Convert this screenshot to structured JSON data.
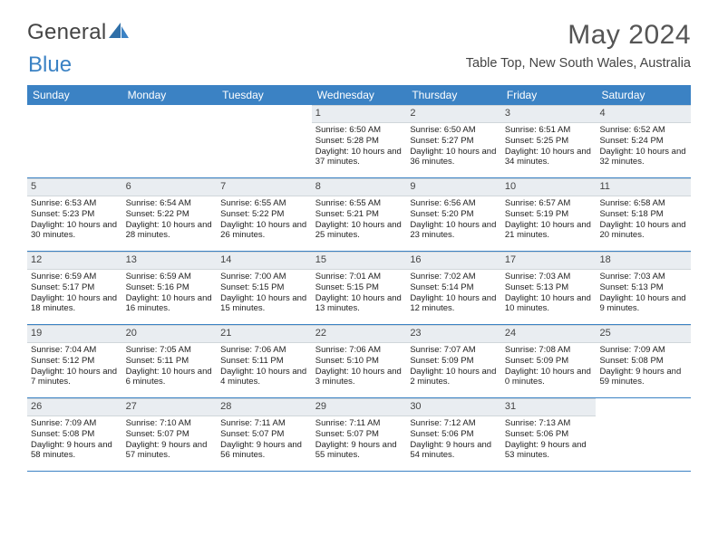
{
  "logo": {
    "text1": "General",
    "text2": "Blue"
  },
  "title": "May 2024",
  "location": "Table Top, New South Wales, Australia",
  "dow": [
    "Sunday",
    "Monday",
    "Tuesday",
    "Wednesday",
    "Thursday",
    "Friday",
    "Saturday"
  ],
  "colors": {
    "header_bg": "#3b82c4",
    "daynum_bg": "#e9edf1",
    "text": "#222222",
    "title": "#555555"
  },
  "weeks": [
    [
      {
        "n": "",
        "sr": "",
        "ss": "",
        "dl": ""
      },
      {
        "n": "",
        "sr": "",
        "ss": "",
        "dl": ""
      },
      {
        "n": "",
        "sr": "",
        "ss": "",
        "dl": ""
      },
      {
        "n": "1",
        "sr": "6:50 AM",
        "ss": "5:28 PM",
        "dl": "10 hours and 37 minutes."
      },
      {
        "n": "2",
        "sr": "6:50 AM",
        "ss": "5:27 PM",
        "dl": "10 hours and 36 minutes."
      },
      {
        "n": "3",
        "sr": "6:51 AM",
        "ss": "5:25 PM",
        "dl": "10 hours and 34 minutes."
      },
      {
        "n": "4",
        "sr": "6:52 AM",
        "ss": "5:24 PM",
        "dl": "10 hours and 32 minutes."
      }
    ],
    [
      {
        "n": "5",
        "sr": "6:53 AM",
        "ss": "5:23 PM",
        "dl": "10 hours and 30 minutes."
      },
      {
        "n": "6",
        "sr": "6:54 AM",
        "ss": "5:22 PM",
        "dl": "10 hours and 28 minutes."
      },
      {
        "n": "7",
        "sr": "6:55 AM",
        "ss": "5:22 PM",
        "dl": "10 hours and 26 minutes."
      },
      {
        "n": "8",
        "sr": "6:55 AM",
        "ss": "5:21 PM",
        "dl": "10 hours and 25 minutes."
      },
      {
        "n": "9",
        "sr": "6:56 AM",
        "ss": "5:20 PM",
        "dl": "10 hours and 23 minutes."
      },
      {
        "n": "10",
        "sr": "6:57 AM",
        "ss": "5:19 PM",
        "dl": "10 hours and 21 minutes."
      },
      {
        "n": "11",
        "sr": "6:58 AM",
        "ss": "5:18 PM",
        "dl": "10 hours and 20 minutes."
      }
    ],
    [
      {
        "n": "12",
        "sr": "6:59 AM",
        "ss": "5:17 PM",
        "dl": "10 hours and 18 minutes."
      },
      {
        "n": "13",
        "sr": "6:59 AM",
        "ss": "5:16 PM",
        "dl": "10 hours and 16 minutes."
      },
      {
        "n": "14",
        "sr": "7:00 AM",
        "ss": "5:15 PM",
        "dl": "10 hours and 15 minutes."
      },
      {
        "n": "15",
        "sr": "7:01 AM",
        "ss": "5:15 PM",
        "dl": "10 hours and 13 minutes."
      },
      {
        "n": "16",
        "sr": "7:02 AM",
        "ss": "5:14 PM",
        "dl": "10 hours and 12 minutes."
      },
      {
        "n": "17",
        "sr": "7:03 AM",
        "ss": "5:13 PM",
        "dl": "10 hours and 10 minutes."
      },
      {
        "n": "18",
        "sr": "7:03 AM",
        "ss": "5:13 PM",
        "dl": "10 hours and 9 minutes."
      }
    ],
    [
      {
        "n": "19",
        "sr": "7:04 AM",
        "ss": "5:12 PM",
        "dl": "10 hours and 7 minutes."
      },
      {
        "n": "20",
        "sr": "7:05 AM",
        "ss": "5:11 PM",
        "dl": "10 hours and 6 minutes."
      },
      {
        "n": "21",
        "sr": "7:06 AM",
        "ss": "5:11 PM",
        "dl": "10 hours and 4 minutes."
      },
      {
        "n": "22",
        "sr": "7:06 AM",
        "ss": "5:10 PM",
        "dl": "10 hours and 3 minutes."
      },
      {
        "n": "23",
        "sr": "7:07 AM",
        "ss": "5:09 PM",
        "dl": "10 hours and 2 minutes."
      },
      {
        "n": "24",
        "sr": "7:08 AM",
        "ss": "5:09 PM",
        "dl": "10 hours and 0 minutes."
      },
      {
        "n": "25",
        "sr": "7:09 AM",
        "ss": "5:08 PM",
        "dl": "9 hours and 59 minutes."
      }
    ],
    [
      {
        "n": "26",
        "sr": "7:09 AM",
        "ss": "5:08 PM",
        "dl": "9 hours and 58 minutes."
      },
      {
        "n": "27",
        "sr": "7:10 AM",
        "ss": "5:07 PM",
        "dl": "9 hours and 57 minutes."
      },
      {
        "n": "28",
        "sr": "7:11 AM",
        "ss": "5:07 PM",
        "dl": "9 hours and 56 minutes."
      },
      {
        "n": "29",
        "sr": "7:11 AM",
        "ss": "5:07 PM",
        "dl": "9 hours and 55 minutes."
      },
      {
        "n": "30",
        "sr": "7:12 AM",
        "ss": "5:06 PM",
        "dl": "9 hours and 54 minutes."
      },
      {
        "n": "31",
        "sr": "7:13 AM",
        "ss": "5:06 PM",
        "dl": "9 hours and 53 minutes."
      },
      {
        "n": "",
        "sr": "",
        "ss": "",
        "dl": ""
      }
    ]
  ],
  "labels": {
    "sunrise": "Sunrise: ",
    "sunset": "Sunset: ",
    "daylight": "Daylight: "
  }
}
